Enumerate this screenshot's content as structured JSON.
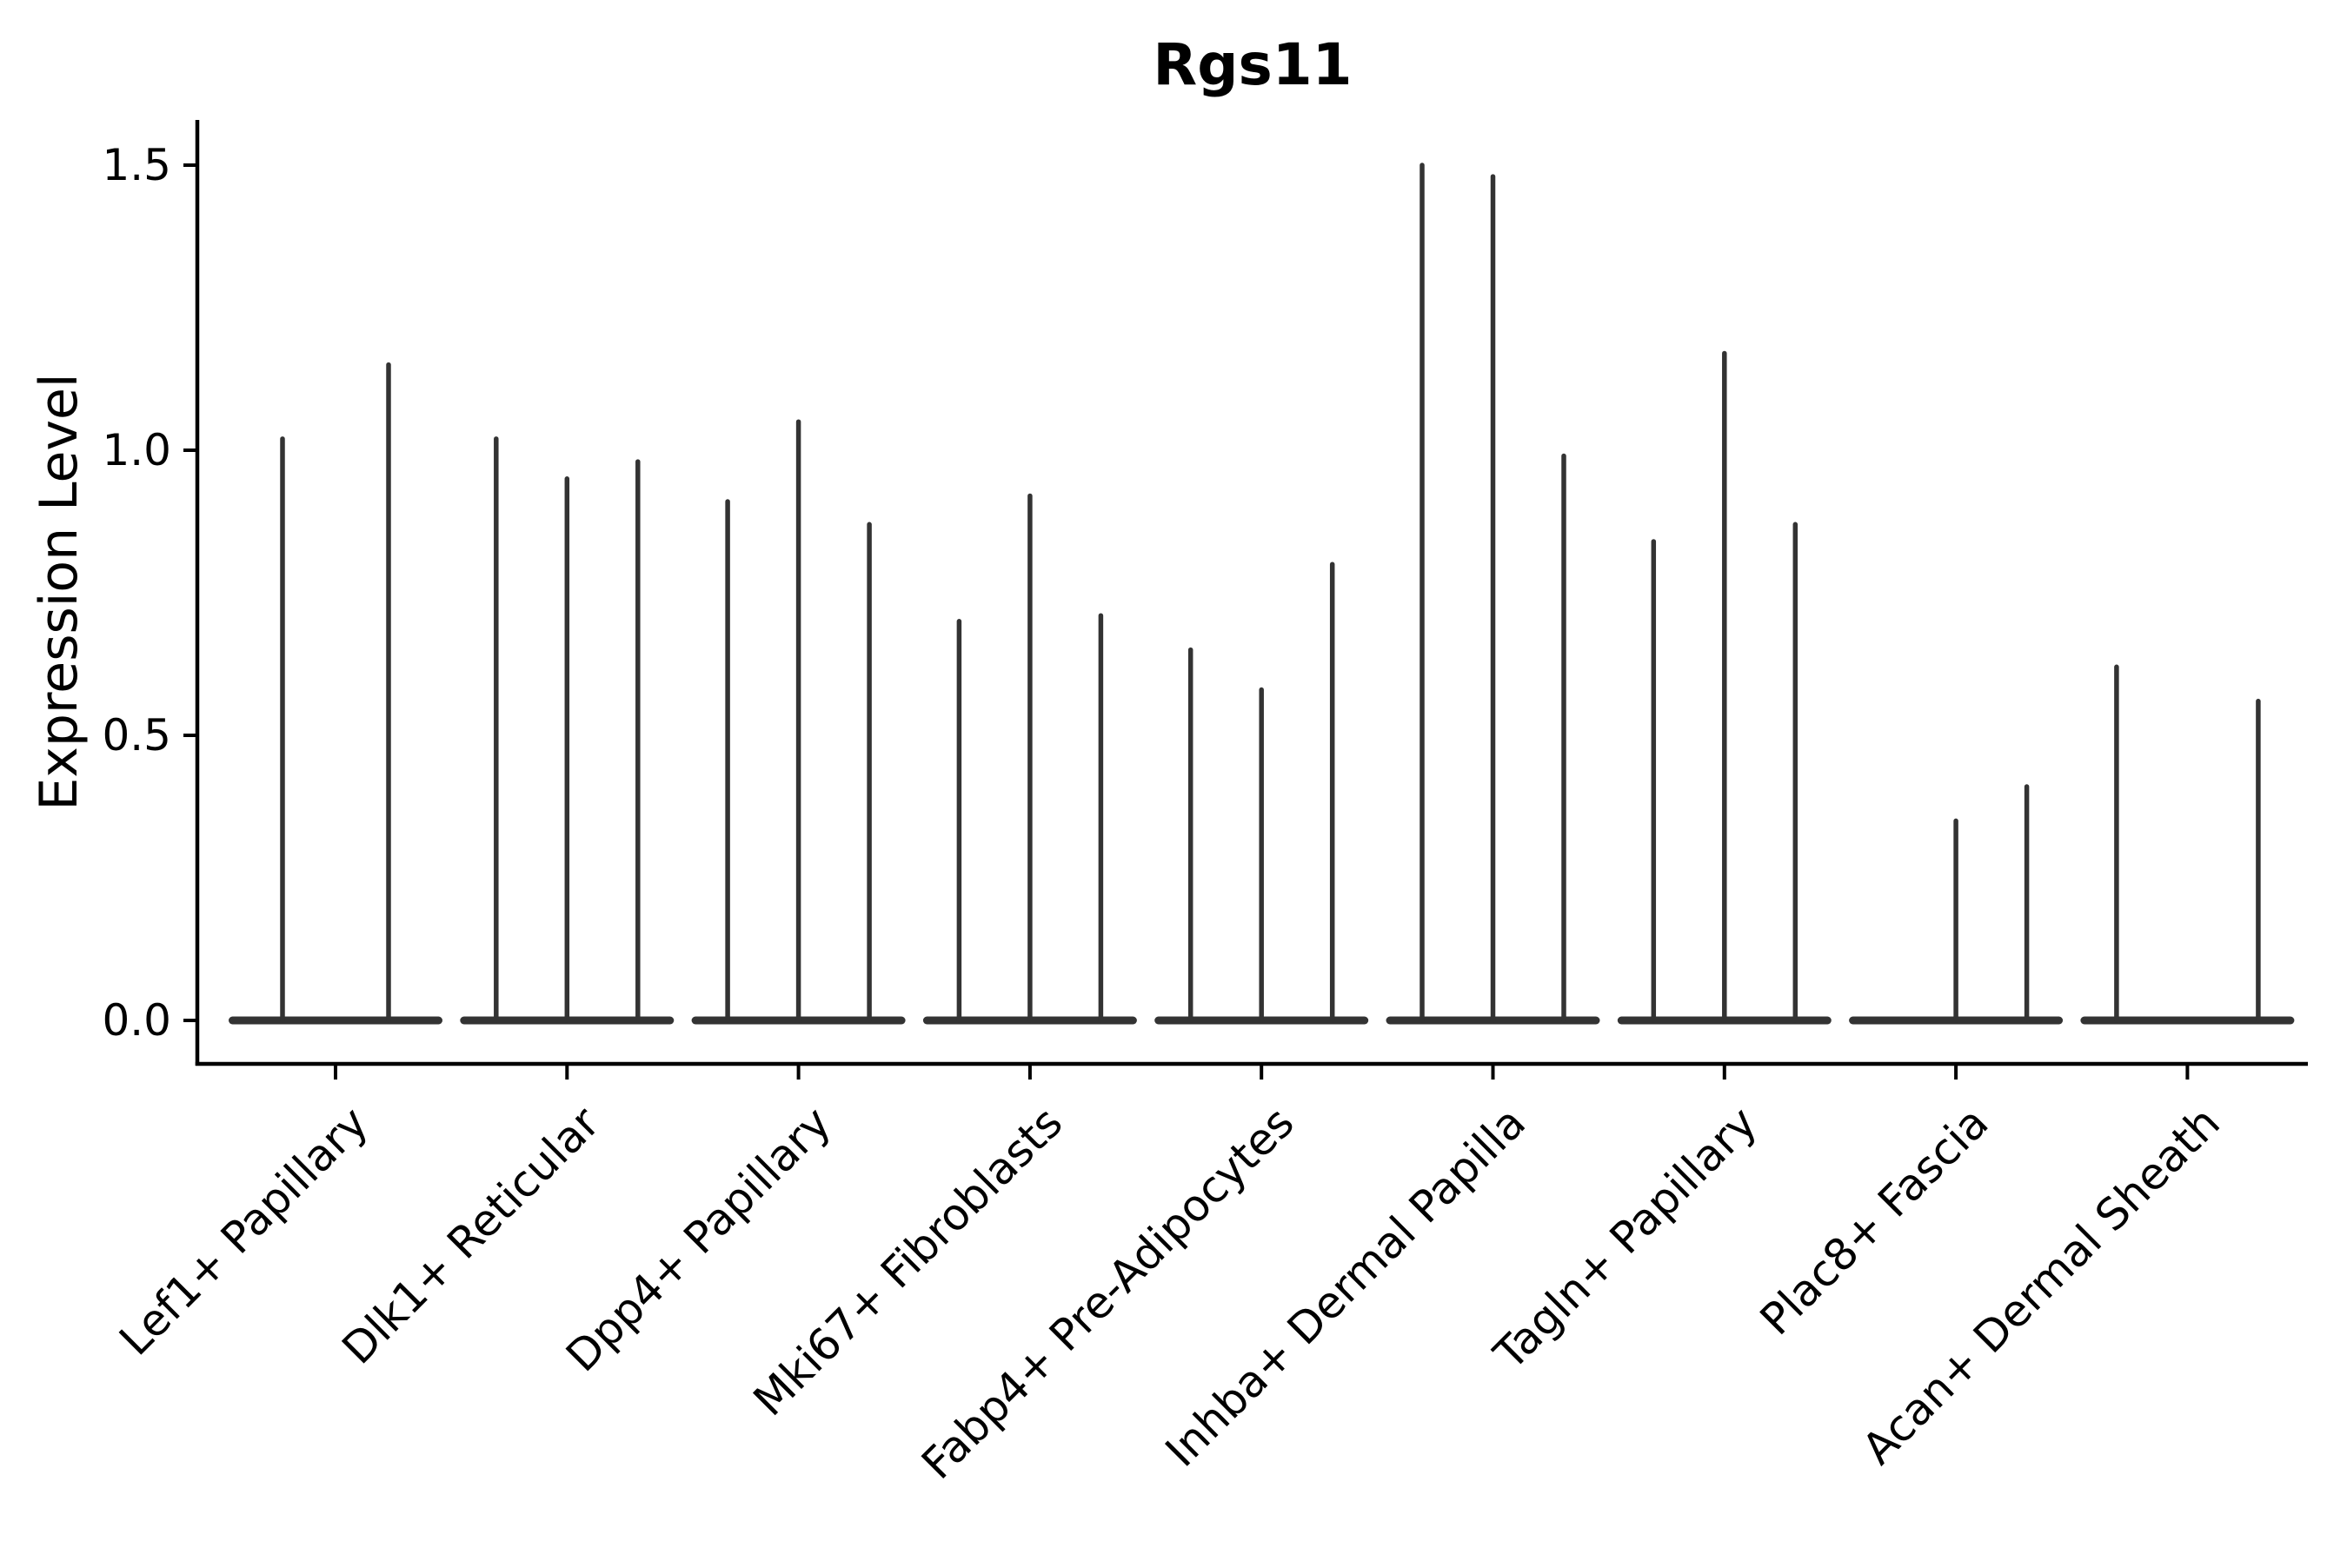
{
  "chart_data": {
    "type": "violin",
    "title": "Rgs11",
    "ylabel": "Expression Level",
    "xlabel": "",
    "grid": false,
    "legend_position": "none",
    "background_color": "#ffffff",
    "axis_color": "#000000",
    "violin_color": "#333333",
    "ylim": [
      -0.08,
      1.58
    ],
    "yticks": [
      {
        "label": "0.0",
        "value": 0.0
      },
      {
        "label": "0.5",
        "value": 0.5
      },
      {
        "label": "1.0",
        "value": 1.0
      },
      {
        "label": "1.5",
        "value": 1.5
      }
    ],
    "x_tick_rotation_deg": 45,
    "categories": [
      {
        "label": "Lef1+ Papillary",
        "violins": [
          {
            "offset": -61,
            "peak": 1.02
          },
          {
            "offset": 61,
            "peak": 1.15
          }
        ]
      },
      {
        "label": "Dlk1+ Reticular",
        "violins": [
          {
            "offset": -81.5,
            "peak": 1.02
          },
          {
            "offset": 0,
            "peak": 0.95
          },
          {
            "offset": 81.5,
            "peak": 0.98
          }
        ]
      },
      {
        "label": "Dpp4+ Papillary",
        "violins": [
          {
            "offset": -81.5,
            "peak": 0.91
          },
          {
            "offset": 0,
            "peak": 1.05
          },
          {
            "offset": 81.5,
            "peak": 0.87
          }
        ]
      },
      {
        "label": "Mki67+ Fibroblasts",
        "violins": [
          {
            "offset": -81.5,
            "peak": 0.7
          },
          {
            "offset": 0,
            "peak": 0.92
          },
          {
            "offset": 81.5,
            "peak": 0.71
          }
        ]
      },
      {
        "label": "Fabp4+ Pre-Adipocytes",
        "violins": [
          {
            "offset": -81.5,
            "peak": 0.65
          },
          {
            "offset": 0,
            "peak": 0.58
          },
          {
            "offset": 81.5,
            "peak": 0.8
          }
        ]
      },
      {
        "label": "Inhba+ Dermal Papilla",
        "violins": [
          {
            "offset": -81.5,
            "peak": 1.5
          },
          {
            "offset": 0,
            "peak": 1.48
          },
          {
            "offset": 81.5,
            "peak": 0.99
          }
        ]
      },
      {
        "label": "Tagln+ Papillary",
        "violins": [
          {
            "offset": -81.5,
            "peak": 0.84
          },
          {
            "offset": 0,
            "peak": 1.17
          },
          {
            "offset": 81.5,
            "peak": 0.87
          }
        ]
      },
      {
        "label": "Plac8+ Fascia",
        "violins": [
          {
            "offset": -81.5,
            "peak": 0.0
          },
          {
            "offset": 0,
            "peak": 0.35
          },
          {
            "offset": 81.5,
            "peak": 0.41
          }
        ]
      },
      {
        "label": "Acan+ Dermal Sheath",
        "violins": [
          {
            "offset": -81.5,
            "peak": 0.62
          },
          {
            "offset": 0,
            "peak": 0.0
          },
          {
            "offset": 81.5,
            "peak": 0.56
          }
        ]
      }
    ]
  }
}
